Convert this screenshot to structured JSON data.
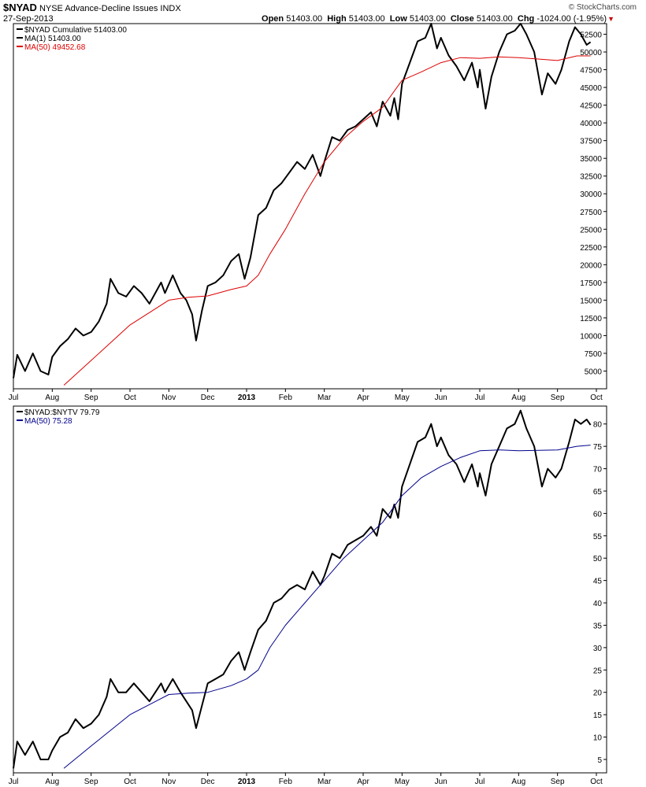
{
  "header": {
    "symbol": "$NYAD",
    "name": "NYSE Advance-Decline Issues",
    "exchange": "INDX",
    "date": "27-Sep-2013",
    "watermark": "© StockCharts.com",
    "open_label": "Open",
    "open_value": "51403.00",
    "high_label": "High",
    "high_value": "51403.00",
    "low_label": "Low",
    "low_value": "51403.00",
    "close_label": "Close",
    "close_value": "51403.00",
    "chg_label": "Chg",
    "chg_value": "-1024.00 (-1.95%)",
    "down_arrow": "▼"
  },
  "colors": {
    "price": "#000000",
    "ma_top": "#dd0000",
    "ma_bottom": "#00008b",
    "down": "#cc0000",
    "border": "#000000"
  },
  "chart_data": [
    {
      "type": "line",
      "legend": [
        "$NYAD  Cumulative 51403.00",
        "MA(1) 51403.00",
        "MA(50) 49452.68"
      ],
      "xlabels": [
        "Jul",
        "Aug",
        "Sep",
        "Oct",
        "Nov",
        "Dec",
        "2013",
        "Feb",
        "Mar",
        "Apr",
        "May",
        "Jun",
        "Jul",
        "Aug",
        "Sep",
        "Oct"
      ],
      "ylim": [
        2500,
        54000
      ],
      "yticks": [
        5000,
        7500,
        10000,
        12500,
        15000,
        17500,
        20000,
        22500,
        25000,
        27500,
        30000,
        32500,
        35000,
        37500,
        40000,
        42500,
        45000,
        47500,
        50000,
        52500
      ],
      "x_months": [
        0,
        1,
        2,
        3,
        4,
        5,
        6,
        7,
        8,
        9,
        10,
        11,
        12,
        13,
        14,
        15
      ],
      "series": [
        {
          "name": "$NYAD",
          "points": [
            [
              0,
              4000
            ],
            [
              0.1,
              7300
            ],
            [
              0.3,
              5000
            ],
            [
              0.5,
              7500
            ],
            [
              0.7,
              5000
            ],
            [
              0.9,
              4500
            ],
            [
              1.0,
              7000
            ],
            [
              1.2,
              8500
            ],
            [
              1.4,
              9500
            ],
            [
              1.6,
              11000
            ],
            [
              1.8,
              10000
            ],
            [
              2.0,
              10500
            ],
            [
              2.2,
              12000
            ],
            [
              2.4,
              14500
            ],
            [
              2.5,
              18000
            ],
            [
              2.7,
              16000
            ],
            [
              2.9,
              15500
            ],
            [
              3.1,
              17000
            ],
            [
              3.3,
              16000
            ],
            [
              3.5,
              14500
            ],
            [
              3.8,
              17500
            ],
            [
              3.9,
              16000
            ],
            [
              4.1,
              18500
            ],
            [
              4.3,
              16000
            ],
            [
              4.45,
              15000
            ],
            [
              4.6,
              13000
            ],
            [
              4.7,
              9300
            ],
            [
              4.85,
              13500
            ],
            [
              5.0,
              17000
            ],
            [
              5.2,
              17500
            ],
            [
              5.4,
              18500
            ],
            [
              5.6,
              20500
            ],
            [
              5.8,
              21500
            ],
            [
              5.95,
              18000
            ],
            [
              6.1,
              21000
            ],
            [
              6.3,
              27000
            ],
            [
              6.5,
              28000
            ],
            [
              6.7,
              30500
            ],
            [
              6.9,
              31500
            ],
            [
              7.1,
              33000
            ],
            [
              7.3,
              34500
            ],
            [
              7.5,
              33500
            ],
            [
              7.7,
              35500
            ],
            [
              7.9,
              32500
            ],
            [
              8.0,
              34500
            ],
            [
              8.2,
              38000
            ],
            [
              8.4,
              37500
            ],
            [
              8.6,
              39000
            ],
            [
              8.8,
              39500
            ],
            [
              9.0,
              40500
            ],
            [
              9.2,
              41500
            ],
            [
              9.35,
              39500
            ],
            [
              9.5,
              43000
            ],
            [
              9.7,
              41000
            ],
            [
              9.8,
              43500
            ],
            [
              9.9,
              40500
            ],
            [
              10.0,
              45500
            ],
            [
              10.2,
              48500
            ],
            [
              10.4,
              51500
            ],
            [
              10.6,
              52000
            ],
            [
              10.75,
              54000
            ],
            [
              10.9,
              50500
            ],
            [
              11.0,
              52000
            ],
            [
              11.2,
              49500
            ],
            [
              11.4,
              48000
            ],
            [
              11.6,
              46000
            ],
            [
              11.8,
              48500
            ],
            [
              11.95,
              45000
            ],
            [
              12.0,
              47500
            ],
            [
              12.15,
              42000
            ],
            [
              12.3,
              46500
            ],
            [
              12.5,
              50000
            ],
            [
              12.7,
              52500
            ],
            [
              12.9,
              53000
            ],
            [
              13.05,
              54000
            ],
            [
              13.2,
              52500
            ],
            [
              13.4,
              50000
            ],
            [
              13.6,
              44000
            ],
            [
              13.75,
              47000
            ],
            [
              13.95,
              45500
            ],
            [
              14.1,
              47500
            ],
            [
              14.3,
              51500
            ],
            [
              14.45,
              53500
            ],
            [
              14.6,
              52500
            ],
            [
              14.75,
              51000
            ],
            [
              14.85,
              51403
            ]
          ]
        },
        {
          "name": "MA(50)",
          "points": [
            [
              1.3,
              3000
            ],
            [
              2,
              6500
            ],
            [
              3,
              11500
            ],
            [
              4,
              15000
            ],
            [
              4.5,
              15400
            ],
            [
              5,
              15600
            ],
            [
              5.6,
              16500
            ],
            [
              6.0,
              17000
            ],
            [
              6.3,
              18500
            ],
            [
              6.6,
              21500
            ],
            [
              7,
              25000
            ],
            [
              7.5,
              30000
            ],
            [
              8,
              34500
            ],
            [
              8.5,
              37800
            ],
            [
              9,
              40200
            ],
            [
              9.5,
              42200
            ],
            [
              10,
              46000
            ],
            [
              10.5,
              47200
            ],
            [
              11,
              48500
            ],
            [
              11.5,
              49200
            ],
            [
              12,
              49100
            ],
            [
              12.5,
              49300
            ],
            [
              13,
              49200
            ],
            [
              13.5,
              49000
            ],
            [
              14,
              48800
            ],
            [
              14.5,
              49450
            ],
            [
              14.85,
              49452
            ]
          ]
        }
      ]
    },
    {
      "type": "line",
      "legend": [
        "$NYAD:$NYTV  79.79",
        "MA(50) 75.28"
      ],
      "xlabels": [
        "Jul",
        "Aug",
        "Sep",
        "Oct",
        "Nov",
        "Dec",
        "2013",
        "Feb",
        "Mar",
        "Apr",
        "May",
        "Jun",
        "Jul",
        "Aug",
        "Sep",
        "Oct"
      ],
      "ylim": [
        2,
        84
      ],
      "yticks": [
        5,
        10,
        15,
        20,
        25,
        30,
        35,
        40,
        45,
        50,
        55,
        60,
        65,
        70,
        75,
        80
      ],
      "series": [
        {
          "name": "$NYAD:$NYTV",
          "points": [
            [
              0,
              3
            ],
            [
              0.1,
              9
            ],
            [
              0.3,
              6
            ],
            [
              0.5,
              9
            ],
            [
              0.7,
              5
            ],
            [
              0.9,
              5
            ],
            [
              1.0,
              7
            ],
            [
              1.2,
              10
            ],
            [
              1.4,
              11
            ],
            [
              1.6,
              14
            ],
            [
              1.8,
              12
            ],
            [
              2.0,
              13
            ],
            [
              2.2,
              15
            ],
            [
              2.4,
              19
            ],
            [
              2.5,
              23
            ],
            [
              2.7,
              20
            ],
            [
              2.9,
              20
            ],
            [
              3.1,
              22
            ],
            [
              3.3,
              20
            ],
            [
              3.5,
              18
            ],
            [
              3.8,
              22
            ],
            [
              3.9,
              20
            ],
            [
              4.1,
              23
            ],
            [
              4.3,
              20
            ],
            [
              4.45,
              18
            ],
            [
              4.6,
              16
            ],
            [
              4.7,
              12
            ],
            [
              4.85,
              17
            ],
            [
              5.0,
              22
            ],
            [
              5.2,
              23
            ],
            [
              5.4,
              24
            ],
            [
              5.6,
              27
            ],
            [
              5.8,
              29
            ],
            [
              5.95,
              25
            ],
            [
              6.1,
              29
            ],
            [
              6.3,
              34
            ],
            [
              6.5,
              36
            ],
            [
              6.7,
              40
            ],
            [
              6.9,
              41
            ],
            [
              7.1,
              43
            ],
            [
              7.3,
              44
            ],
            [
              7.5,
              43
            ],
            [
              7.7,
              47
            ],
            [
              7.9,
              44
            ],
            [
              8.0,
              46
            ],
            [
              8.2,
              51
            ],
            [
              8.4,
              50
            ],
            [
              8.6,
              53
            ],
            [
              8.8,
              54
            ],
            [
              9.0,
              55
            ],
            [
              9.2,
              57
            ],
            [
              9.35,
              55
            ],
            [
              9.5,
              61
            ],
            [
              9.7,
              59
            ],
            [
              9.8,
              62
            ],
            [
              9.9,
              59
            ],
            [
              10.0,
              66
            ],
            [
              10.2,
              71
            ],
            [
              10.4,
              76
            ],
            [
              10.6,
              77
            ],
            [
              10.75,
              80
            ],
            [
              10.9,
              75
            ],
            [
              11.0,
              77
            ],
            [
              11.2,
              73
            ],
            [
              11.4,
              71
            ],
            [
              11.6,
              67
            ],
            [
              11.8,
              71
            ],
            [
              11.95,
              66
            ],
            [
              12.0,
              69
            ],
            [
              12.15,
              64
            ],
            [
              12.3,
              71
            ],
            [
              12.5,
              75
            ],
            [
              12.7,
              79
            ],
            [
              12.9,
              80
            ],
            [
              13.05,
              83
            ],
            [
              13.2,
              79
            ],
            [
              13.4,
              75
            ],
            [
              13.6,
              66
            ],
            [
              13.75,
              70
            ],
            [
              13.95,
              68
            ],
            [
              14.1,
              70
            ],
            [
              14.3,
              76
            ],
            [
              14.45,
              81
            ],
            [
              14.6,
              80
            ],
            [
              14.75,
              81
            ],
            [
              14.85,
              79.79
            ]
          ]
        },
        {
          "name": "MA(50)",
          "points": [
            [
              1.3,
              3
            ],
            [
              2,
              8
            ],
            [
              3,
              15
            ],
            [
              4,
              19.5
            ],
            [
              4.5,
              19.8
            ],
            [
              5,
              20
            ],
            [
              5.6,
              21.5
            ],
            [
              6.0,
              23
            ],
            [
              6.3,
              25
            ],
            [
              6.6,
              30
            ],
            [
              7,
              35
            ],
            [
              7.5,
              40
            ],
            [
              8,
              45
            ],
            [
              8.5,
              50
            ],
            [
              9,
              54
            ],
            [
              9.5,
              58
            ],
            [
              10,
              64
            ],
            [
              10.5,
              68
            ],
            [
              11,
              70.5
            ],
            [
              11.5,
              72.5
            ],
            [
              12,
              74
            ],
            [
              12.5,
              74.2
            ],
            [
              13,
              74.0
            ],
            [
              13.5,
              74.1
            ],
            [
              14,
              74.2
            ],
            [
              14.5,
              75.0
            ],
            [
              14.85,
              75.28
            ]
          ]
        }
      ]
    }
  ]
}
